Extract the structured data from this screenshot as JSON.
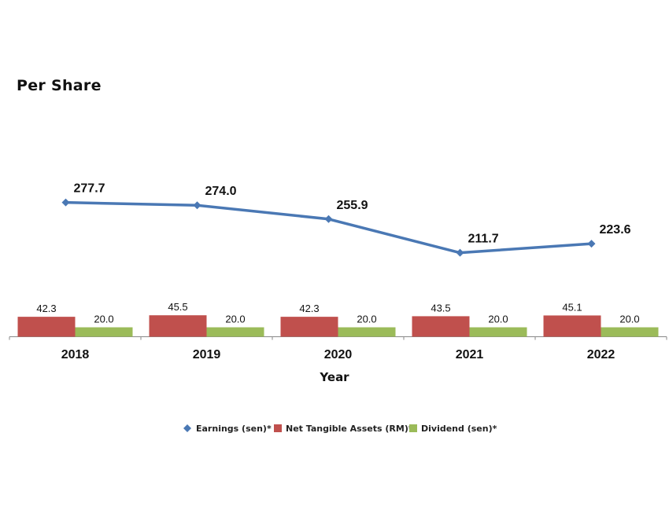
{
  "chart_data": {
    "type": "bar",
    "title": "Per Share",
    "xlabel": "Year",
    "ylabel": "",
    "categories": [
      "2018",
      "2019",
      "2020",
      "2021",
      "2022"
    ],
    "series": [
      {
        "name": "Earnings (sen)*",
        "type": "line",
        "color": "#4a78b4",
        "marker": "diamond",
        "values": [
          277.7,
          274.0,
          255.9,
          211.7,
          223.6
        ]
      },
      {
        "name": "Net Tangible Assets (RM)*",
        "type": "bar",
        "color": "#c0504d",
        "values": [
          42.3,
          45.5,
          42.3,
          43.5,
          45.1
        ]
      },
      {
        "name": "Dividend (sen)*",
        "type": "bar",
        "color": "#9bbb59",
        "values": [
          20.0,
          20.0,
          20.0,
          20.0,
          20.0
        ]
      }
    ],
    "legend_position": "bottom",
    "grid": false
  }
}
